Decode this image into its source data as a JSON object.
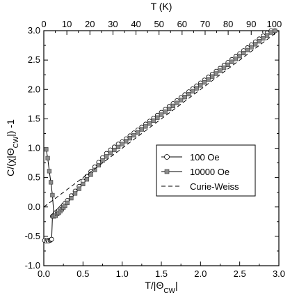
{
  "chart_data": {
    "type": "line",
    "xlabel": "T/|Θ_CW|",
    "x2label": "T (K)",
    "ylabel": "C/(χ|Θ_CW|) -1",
    "xlim": [
      0,
      3.0
    ],
    "x2lim": [
      0,
      102
    ],
    "ylim": [
      -1.0,
      3.0
    ],
    "x_ticks": [
      "0.0",
      "0.5",
      "1.0",
      "1.5",
      "2.0",
      "2.5",
      "3.0"
    ],
    "x2_ticks": [
      "0",
      "10",
      "20",
      "30",
      "40",
      "50",
      "60",
      "70",
      "80",
      "90",
      "100"
    ],
    "y_ticks": [
      "-1.0",
      "-0.5",
      "0.0",
      "0.5",
      "1.0",
      "1.5",
      "2.0",
      "2.5",
      "3.0"
    ],
    "grid": false,
    "legend_position": "center-right",
    "colors": {
      "open_marker": "#ffffff",
      "filled_marker": "#8c8c8c",
      "line": "#000000"
    },
    "series": [
      {
        "name": "100 Oe",
        "marker": "open-circle",
        "x": [
          0.01,
          0.03,
          0.05,
          0.06,
          0.08,
          0.09,
          0.1,
          0.11,
          0.12,
          0.14,
          0.15,
          0.17,
          0.19,
          0.21,
          0.23,
          0.25,
          0.27,
          0.3,
          0.35,
          0.4,
          0.45,
          0.5,
          0.55,
          0.6,
          0.65,
          0.7,
          0.75,
          0.8,
          0.85,
          0.9,
          0.95,
          1.0,
          1.05,
          1.1,
          1.15,
          1.2,
          1.25,
          1.3,
          1.35,
          1.4,
          1.45,
          1.5,
          1.55,
          1.6,
          1.65,
          1.7,
          1.75,
          1.8,
          1.85,
          1.9,
          1.95,
          2.0,
          2.05,
          2.1,
          2.15,
          2.2,
          2.25,
          2.3,
          2.35,
          2.4,
          2.45,
          2.5,
          2.55,
          2.6,
          2.65,
          2.7,
          2.75,
          2.8,
          2.85,
          2.9,
          2.95
        ],
        "y": [
          -0.57,
          -0.58,
          -0.57,
          -0.58,
          -0.57,
          -0.56,
          -0.55,
          -0.16,
          -0.15,
          -0.12,
          -0.1,
          -0.08,
          -0.06,
          -0.03,
          0.0,
          0.03,
          0.06,
          0.11,
          0.19,
          0.27,
          0.35,
          0.44,
          0.52,
          0.6,
          0.68,
          0.76,
          0.84,
          0.91,
          0.97,
          1.02,
          1.07,
          1.11,
          1.16,
          1.21,
          1.26,
          1.31,
          1.36,
          1.41,
          1.46,
          1.51,
          1.56,
          1.61,
          1.66,
          1.71,
          1.76,
          1.81,
          1.86,
          1.91,
          1.96,
          2.01,
          2.06,
          2.11,
          2.16,
          2.21,
          2.26,
          2.31,
          2.36,
          2.41,
          2.46,
          2.51,
          2.56,
          2.61,
          2.66,
          2.71,
          2.76,
          2.81,
          2.86,
          2.91,
          2.96,
          3.0,
          3.0
        ]
      },
      {
        "name": "10000 Oe",
        "marker": "filled-square",
        "x": [
          0.03,
          0.05,
          0.07,
          0.09,
          0.11,
          0.13,
          0.15,
          0.17,
          0.19,
          0.21,
          0.23,
          0.25,
          0.27,
          0.3,
          0.35,
          0.4,
          0.45,
          0.5,
          0.55,
          0.6,
          0.65,
          0.7,
          0.75,
          0.8,
          0.85,
          0.9,
          0.95,
          1.0,
          1.05,
          1.1,
          1.15,
          1.2,
          1.25,
          1.3,
          1.35,
          1.4,
          1.45,
          1.5,
          1.55,
          1.6,
          1.65,
          1.7,
          1.75,
          1.8,
          1.85,
          1.9,
          1.95,
          2.0,
          2.05,
          2.1,
          2.15,
          2.2,
          2.25,
          2.3,
          2.35,
          2.4,
          2.45,
          2.5,
          2.55,
          2.6,
          2.65,
          2.7,
          2.75,
          2.8,
          2.85,
          2.9,
          2.95
        ],
        "y": [
          0.98,
          0.83,
          0.61,
          0.42,
          0.2,
          -0.16,
          -0.15,
          -0.12,
          -0.1,
          -0.07,
          -0.04,
          -0.01,
          0.02,
          0.07,
          0.15,
          0.23,
          0.31,
          0.39,
          0.47,
          0.55,
          0.63,
          0.71,
          0.79,
          0.86,
          0.92,
          0.97,
          1.02,
          1.07,
          1.12,
          1.17,
          1.22,
          1.27,
          1.32,
          1.37,
          1.42,
          1.47,
          1.52,
          1.57,
          1.62,
          1.67,
          1.72,
          1.77,
          1.82,
          1.87,
          1.92,
          1.97,
          2.02,
          2.07,
          2.12,
          2.17,
          2.22,
          2.27,
          2.32,
          2.37,
          2.42,
          2.47,
          2.52,
          2.57,
          2.62,
          2.67,
          2.72,
          2.77,
          2.82,
          2.87,
          2.92,
          2.97,
          3.0
        ]
      },
      {
        "name": "Curie-Weiss",
        "marker": "none",
        "dash": true,
        "x": [
          0.0,
          3.0
        ],
        "y": [
          0.0,
          3.0
        ]
      }
    ]
  }
}
